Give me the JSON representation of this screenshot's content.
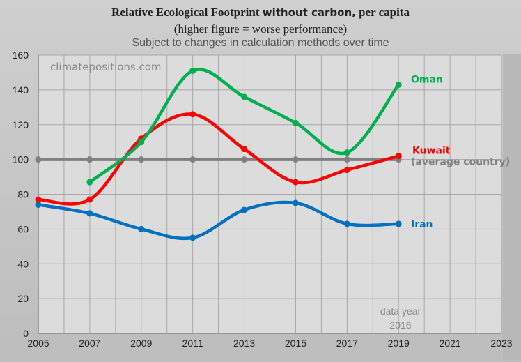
{
  "title_part1": "Relative Ecological Footprint",
  "title_part2": "without carbon,",
  "title_part3": "per capita",
  "subtitle": "(higher figure = worse performance)",
  "note": "Subject to changes in calculation methods over time",
  "watermark": "climatepositions.com",
  "data_year_label": "data year",
  "data_year": "2016",
  "chart_data": {
    "type": "line",
    "xlim": [
      2005,
      2023
    ],
    "ylim": [
      0,
      160
    ],
    "x_ticks": [
      "2005",
      "2007",
      "2009",
      "2011",
      "2013",
      "2015",
      "2017",
      "2019",
      "2021",
      "2023"
    ],
    "y_ticks": [
      "0",
      "20",
      "40",
      "60",
      "80",
      "100",
      "120",
      "140",
      "160"
    ],
    "grid": true,
    "series": [
      {
        "name": "Oman",
        "color": "#00b050",
        "x": [
          2007,
          2009,
          2011,
          2013,
          2015,
          2017,
          2019
        ],
        "y": [
          87,
          110,
          151,
          136,
          121,
          104,
          143
        ]
      },
      {
        "name": "Kuwait",
        "color": "#ff0000",
        "x": [
          2005,
          2007,
          2009,
          2011,
          2013,
          2015,
          2017,
          2019
        ],
        "y": [
          77,
          77,
          112,
          126,
          106,
          87,
          94,
          102
        ]
      },
      {
        "name": "(average country)",
        "color": "#808080",
        "x": [
          2005,
          2007,
          2009,
          2011,
          2013,
          2015,
          2017,
          2019
        ],
        "y": [
          100,
          100,
          100,
          100,
          100,
          100,
          100,
          100
        ]
      },
      {
        "name": "Iran",
        "color": "#0070c0",
        "x": [
          2005,
          2007,
          2009,
          2011,
          2013,
          2015,
          2017,
          2019
        ],
        "y": [
          74,
          69,
          60,
          55,
          71,
          75,
          63,
          63
        ]
      }
    ]
  }
}
